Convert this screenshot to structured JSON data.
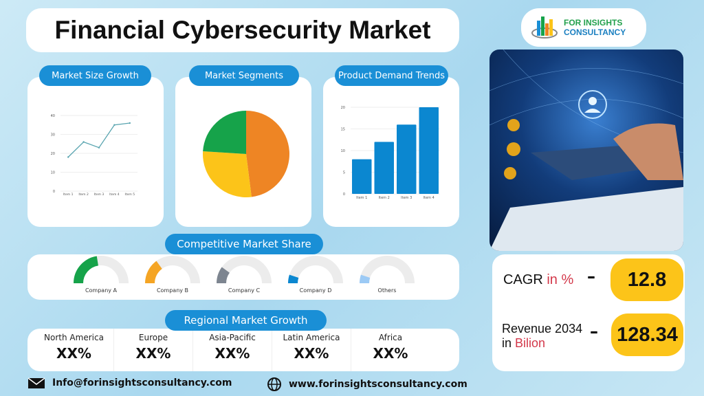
{
  "title": "Financial Cybersecurity Market",
  "logo": {
    "line1": "FOR INSIGHTS",
    "line2": "CONSULTANCY"
  },
  "sections": {
    "market_size": "Market Size Growth",
    "segments": "Market Segments",
    "demand": "Product Demand Trends",
    "competitive": "Competitive Market Share",
    "regional": "Regional Market Growth"
  },
  "colors": {
    "accent": "#1a8fd6",
    "highlight": "#fcc419",
    "red_text": "#d3384a"
  },
  "chart_data": [
    {
      "type": "line",
      "title": "Market Size Growth",
      "categories": [
        "Item 1",
        "Item 2",
        "Item 3",
        "Item 4",
        "Item 5"
      ],
      "values": [
        18,
        26,
        23,
        35,
        36
      ],
      "ylim": [
        0,
        40
      ],
      "yticks": [
        0,
        10,
        20,
        30,
        40
      ],
      "grid": true,
      "color": "#5aa5b0"
    },
    {
      "type": "pie",
      "title": "Market Segments",
      "values": [
        48,
        28,
        24
      ],
      "colors": [
        "#ee8524",
        "#fcc419",
        "#16a34a"
      ]
    },
    {
      "type": "bar",
      "title": "Product Demand Trends",
      "categories": [
        "Item 1",
        "Item 2",
        "Item 3",
        "Item 4"
      ],
      "values": [
        8,
        12,
        16,
        20
      ],
      "ylim": [
        0,
        20
      ],
      "yticks": [
        0,
        5,
        10,
        15,
        20
      ],
      "grid": true,
      "color": "#0b87d0"
    },
    {
      "type": "gauge",
      "title": "Competitive Market Share",
      "categories": [
        "Company A",
        "Company B",
        "Company C",
        "Company D",
        "Others"
      ],
      "values": [
        0.45,
        0.3,
        0.2,
        0.1,
        0.1
      ],
      "colors": [
        "#16a34a",
        "#f5a524",
        "#7d8590",
        "#0b87d0",
        "#9ccaf5"
      ]
    }
  ],
  "regional": [
    {
      "name": "North America",
      "value": "XX%"
    },
    {
      "name": "Europe",
      "value": "XX%"
    },
    {
      "name": "Asia-Pacific",
      "value": "XX%"
    },
    {
      "name": "Latin America",
      "value": "XX%"
    },
    {
      "name": "Africa",
      "value": "XX%"
    }
  ],
  "stats": {
    "cagr_label": "CAGR",
    "cagr_unit": "in %",
    "cagr_value": "12.8",
    "rev_label": "Revenue 2034",
    "rev_unit_pre": "in",
    "rev_unit": "Bilion",
    "rev_value": "128.34",
    "dash": "–"
  },
  "footer": {
    "email": "Info@forinsightsconsultancy.com",
    "website": "www.forinsightsconsultancy.com",
    "email_icon": "envelope-icon",
    "web_icon": "globe-icon"
  }
}
